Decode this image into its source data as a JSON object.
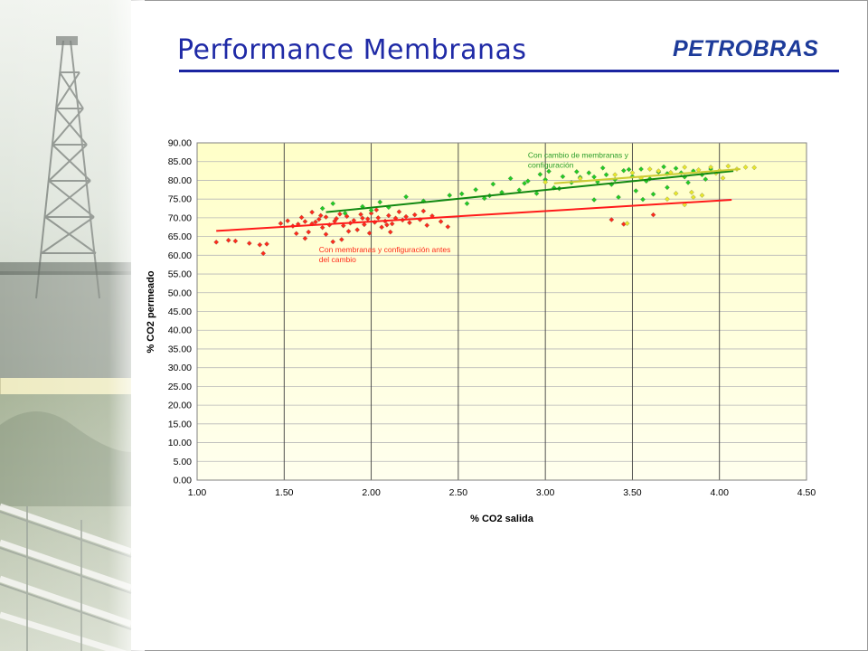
{
  "slide": {
    "title": "Performance Membranas",
    "logo_text": "PETROBRAS",
    "title_color": "#1f2aa6",
    "logo_color": "#1d3b9a"
  },
  "chart_data": {
    "type": "scatter",
    "xlabel": "% CO2 salida",
    "ylabel": "% CO2 permeado",
    "xlim": [
      1.0,
      4.5
    ],
    "ylim": [
      0,
      90
    ],
    "x_ticks": [
      "1.00",
      "1.50",
      "2.00",
      "2.50",
      "3.00",
      "3.50",
      "4.00",
      "4.50"
    ],
    "y_ticks": [
      "0.00",
      "5.00",
      "10.00",
      "15.00",
      "20.00",
      "25.00",
      "30.00",
      "35.00",
      "40.00",
      "45.00",
      "50.00",
      "55.00",
      "60.00",
      "65.00",
      "70.00",
      "75.00",
      "80.00",
      "85.00",
      "90.00"
    ],
    "grid": true,
    "plot_background": [
      "#ffffc8",
      "#ffffee"
    ],
    "series": [
      {
        "color": "#ff2a1a",
        "marker": "diamond",
        "points": [
          [
            1.11,
            63.5
          ],
          [
            1.18,
            64.0
          ],
          [
            1.22,
            63.8
          ],
          [
            1.3,
            63.2
          ],
          [
            1.36,
            62.8
          ],
          [
            1.38,
            60.5
          ],
          [
            1.4,
            63.0
          ],
          [
            1.48,
            68.5
          ],
          [
            1.52,
            69.2
          ],
          [
            1.55,
            67.8
          ],
          [
            1.58,
            68.3
          ],
          [
            1.6,
            70.1
          ],
          [
            1.62,
            69.0
          ],
          [
            1.64,
            66.2
          ],
          [
            1.66,
            71.5
          ],
          [
            1.68,
            68.9
          ],
          [
            1.7,
            69.6
          ],
          [
            1.72,
            67.4
          ],
          [
            1.74,
            70.2
          ],
          [
            1.76,
            68.1
          ],
          [
            1.78,
            63.6
          ],
          [
            1.8,
            69.8
          ],
          [
            1.82,
            71.0
          ],
          [
            1.84,
            67.9
          ],
          [
            1.86,
            70.4
          ],
          [
            1.88,
            68.6
          ],
          [
            1.9,
            69.3
          ],
          [
            1.92,
            66.8
          ],
          [
            1.94,
            70.9
          ],
          [
            1.96,
            68.2
          ],
          [
            1.98,
            69.7
          ],
          [
            2.0,
            71.2
          ],
          [
            2.02,
            68.8
          ],
          [
            2.04,
            70.0
          ],
          [
            2.06,
            67.5
          ],
          [
            2.08,
            69.1
          ],
          [
            2.1,
            70.6
          ],
          [
            2.12,
            68.4
          ],
          [
            2.14,
            69.9
          ],
          [
            2.16,
            71.6
          ],
          [
            2.18,
            69.4
          ],
          [
            2.2,
            70.3
          ],
          [
            2.22,
            68.7
          ],
          [
            2.25,
            70.8
          ],
          [
            2.28,
            69.5
          ],
          [
            2.3,
            71.8
          ],
          [
            2.32,
            68.0
          ],
          [
            2.35,
            70.5
          ],
          [
            2.4,
            69.0
          ],
          [
            2.44,
            67.6
          ],
          [
            1.57,
            65.8
          ],
          [
            1.66,
            68.4
          ],
          [
            1.71,
            70.6
          ],
          [
            1.79,
            69.1
          ],
          [
            1.87,
            66.4
          ],
          [
            1.95,
            69.9
          ],
          [
            2.03,
            72.1
          ],
          [
            2.09,
            68.1
          ],
          [
            1.62,
            64.5
          ],
          [
            1.74,
            65.6
          ],
          [
            1.83,
            64.2
          ],
          [
            1.99,
            65.9
          ],
          [
            2.11,
            66.2
          ],
          [
            3.38,
            69.5
          ],
          [
            3.45,
            68.3
          ],
          [
            3.62,
            70.8
          ]
        ]
      },
      {
        "color": "#22cc22",
        "marker": "diamond",
        "points": [
          [
            1.72,
            72.5
          ],
          [
            1.78,
            73.8
          ],
          [
            1.85,
            71.2
          ],
          [
            1.95,
            73.0
          ],
          [
            2.0,
            72.0
          ],
          [
            2.05,
            74.2
          ],
          [
            2.1,
            72.8
          ],
          [
            2.2,
            75.6
          ],
          [
            2.3,
            74.5
          ],
          [
            2.45,
            76.0
          ],
          [
            2.55,
            73.8
          ],
          [
            2.6,
            77.5
          ],
          [
            2.65,
            75.2
          ],
          [
            2.7,
            79.0
          ],
          [
            2.75,
            76.8
          ],
          [
            2.8,
            80.5
          ],
          [
            2.85,
            77.4
          ],
          [
            2.9,
            79.8
          ],
          [
            2.95,
            76.5
          ],
          [
            3.0,
            80.2
          ],
          [
            3.05,
            78.0
          ],
          [
            3.1,
            81.0
          ],
          [
            3.15,
            79.4
          ],
          [
            3.2,
            80.8
          ],
          [
            3.25,
            82.0
          ],
          [
            3.3,
            79.6
          ],
          [
            3.35,
            81.5
          ],
          [
            3.4,
            80.2
          ],
          [
            3.45,
            82.6
          ],
          [
            3.5,
            81.0
          ],
          [
            3.55,
            83.0
          ],
          [
            3.6,
            80.4
          ],
          [
            3.65,
            82.2
          ],
          [
            3.7,
            81.8
          ],
          [
            3.75,
            83.2
          ],
          [
            3.8,
            80.9
          ],
          [
            3.85,
            82.5
          ],
          [
            3.9,
            81.5
          ],
          [
            3.95,
            83.0
          ],
          [
            2.88,
            79.2
          ],
          [
            2.97,
            81.6
          ],
          [
            3.08,
            77.8
          ],
          [
            3.18,
            82.3
          ],
          [
            3.28,
            80.9
          ],
          [
            3.38,
            78.9
          ],
          [
            3.48,
            82.9
          ],
          [
            3.58,
            79.8
          ],
          [
            3.68,
            83.6
          ],
          [
            3.78,
            82.0
          ],
          [
            3.42,
            75.5
          ],
          [
            3.52,
            77.2
          ],
          [
            3.62,
            76.3
          ],
          [
            3.7,
            78.1
          ],
          [
            3.82,
            79.4
          ],
          [
            3.92,
            80.3
          ],
          [
            3.28,
            74.8
          ],
          [
            3.56,
            74.9
          ],
          [
            3.33,
            83.3
          ],
          [
            2.52,
            76.4
          ],
          [
            2.68,
            75.9
          ],
          [
            3.02,
            82.4
          ]
        ]
      },
      {
        "color": "#e8e82a",
        "marker": "diamond",
        "points": [
          [
            3.0,
            79.5
          ],
          [
            3.2,
            80.5
          ],
          [
            3.4,
            81.5
          ],
          [
            3.5,
            82.0
          ],
          [
            3.55,
            80.6
          ],
          [
            3.65,
            82.5
          ],
          [
            3.7,
            75.0
          ],
          [
            3.75,
            76.5
          ],
          [
            3.8,
            83.5
          ],
          [
            3.85,
            75.5
          ],
          [
            3.88,
            82.8
          ],
          [
            3.9,
            76.0
          ],
          [
            3.95,
            83.5
          ],
          [
            4.0,
            82.6
          ],
          [
            4.05,
            83.8
          ],
          [
            4.1,
            83.0
          ],
          [
            4.15,
            83.5
          ],
          [
            4.2,
            83.4
          ],
          [
            3.6,
            83.0
          ],
          [
            3.72,
            82.1
          ],
          [
            3.84,
            76.8
          ],
          [
            3.98,
            81.9
          ],
          [
            4.02,
            80.6
          ],
          [
            3.47,
            68.5
          ],
          [
            3.8,
            73.5
          ]
        ]
      }
    ],
    "trendlines": [
      {
        "color": "#ff1a1a",
        "x": [
          1.11,
          4.07
        ],
        "y": [
          66.5,
          74.8
        ]
      },
      {
        "color": "#118811",
        "x": [
          1.74,
          4.08
        ],
        "y": [
          71.5,
          82.5
        ]
      },
      {
        "color": "#cccc33",
        "x": [
          3.05,
          4.12
        ],
        "y": [
          79.2,
          83.0
        ]
      }
    ],
    "annotations": [
      {
        "lines": [
          "Con cambio de membranas y",
          "configuración"
        ],
        "color": "#2a9d2a",
        "x": 2.9,
        "y": 86.0
      },
      {
        "lines": [
          "Con membranas y configuración antes",
          "del cambio"
        ],
        "color": "#ff2a1a",
        "x": 1.7,
        "y": 60.8
      }
    ]
  }
}
